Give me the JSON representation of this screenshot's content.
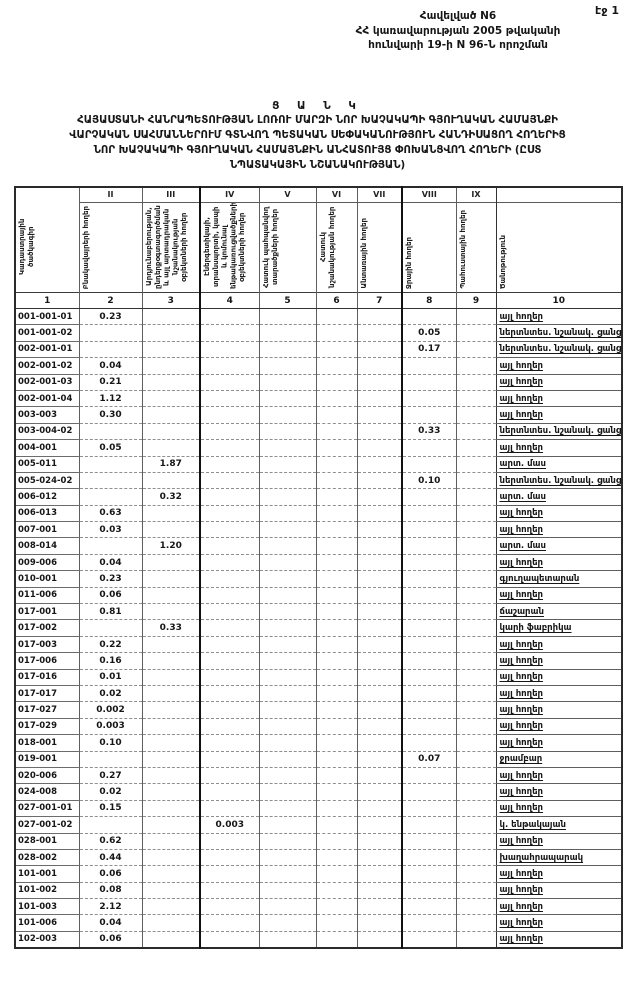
{
  "page": {
    "number": "էջ 1"
  },
  "appendix": {
    "lines": [
      "Հավելված N6",
      "ՀՀ կառավարության 2005 թվականի",
      "հունվարի 19-ի N 96-Ն որոշման"
    ]
  },
  "title": {
    "lines": [
      "Ց Ա Ն Կ",
      "ՀԱՅԱՍՏԱՆԻ ՀԱՆՐԱՊԵՏՈՒԹՅԱՆ ԼՈՌՈՒ ՄԱՐԶԻ ՆՈՐ ԽԱՉԱԿԱՊԻ ԳՅՈՒՂԱԿԱՆ ՀԱՄԱՅՆՔԻ",
      "ՎԱՐՉԱԿԱՆ ՍԱՀՄԱՆՆԵՐՈՒՄ ԳՏՆՎՈՂ ՊԵՏԱԿԱՆ ՍԵՓԱԿԱՆՈՒԹՅՈՒՆ ՀԱՆԴԻՍԱՑՈՂ ՀՈՂԵՐԻՑ",
      "ՆՈՐ ԽԱՉԱԿԱՊԻ ԳՅՈՒՂԱԿԱՆ ՀԱՄԱՅՆՔԻՆ ԱՆՀԱՏՈՒՅՑ ՓՈԽԱՆՑՎՈՂ ՀՈՂԵՐԻ (ԸՍՏ",
      "ՆՊԱՏԱԿԱՅԻՆ ՆՇԱՆԱԿՈՒԹՅԱՆ)"
    ]
  },
  "table": {
    "columns": [
      {
        "roman": "",
        "label": "Կադաստրային ծածկագիր",
        "number": "1"
      },
      {
        "roman": "II",
        "label": "Բնակավայրերի հողեր",
        "number": "2"
      },
      {
        "roman": "III",
        "label": "Արդյունաբերության, ընդերքօգտագործման և այլ արտադրական նշանակության օբյեկտների հողեր",
        "number": "3"
      },
      {
        "roman": "IV",
        "label": "Էներգետիկայի, տրանսպորտի, կապի և կոմունալ ենթակառուցվածքների օբյեկտների հողեր",
        "number": "4"
      },
      {
        "roman": "V",
        "label": "Հատուկ պահպանվող տարածքների հողեր",
        "number": "5"
      },
      {
        "roman": "VI",
        "label": "Հատուկ նշանակության հողեր",
        "number": "6"
      },
      {
        "roman": "VII",
        "label": "Անտառային հողեր",
        "number": "7"
      },
      {
        "roman": "VIII",
        "label": "Ջրային հողեր",
        "number": "8"
      },
      {
        "roman": "IX",
        "label": "Պահուստային հողեր",
        "number": "9"
      },
      {
        "roman": "",
        "label": "Ծանոթություն",
        "number": "10"
      }
    ],
    "rows": [
      {
        "code": "001-001-01",
        "values": [
          "0.23",
          "",
          "",
          "",
          "",
          "",
          "",
          ""
        ],
        "note": "այլ հողեր",
        "mark": ""
      },
      {
        "code": "001-001-02",
        "values": [
          "",
          "",
          "",
          "",
          "",
          "",
          "0.05",
          ""
        ],
        "note": "ներտնտես. նշանակ. ցանց",
        "mark": "ii"
      },
      {
        "code": "002-001-01",
        "values": [
          "",
          "",
          "",
          "",
          "",
          "",
          "0.17",
          ""
        ],
        "note": "ներտնտես. նշանակ. ցանց",
        "mark": "ii"
      },
      {
        "code": "002-001-02",
        "values": [
          "0.04",
          "",
          "",
          "",
          "",
          "",
          "",
          ""
        ],
        "note": "այլ հողեր",
        "mark": ""
      },
      {
        "code": "002-001-03",
        "values": [
          "0.21",
          "",
          "",
          "",
          "",
          "",
          "",
          ""
        ],
        "note": "այլ հողեր",
        "mark": ""
      },
      {
        "code": "002-001-04",
        "values": [
          "1.12",
          "",
          "",
          "",
          "",
          "",
          "",
          ""
        ],
        "note": "այլ հողեր",
        "mark": ""
      },
      {
        "code": "003-003",
        "values": [
          "0.30",
          "",
          "",
          "",
          "",
          "",
          "",
          ""
        ],
        "note": "այլ հողեր",
        "mark": ""
      },
      {
        "code": "003-004-02",
        "values": [
          "",
          "",
          "",
          "",
          "",
          "",
          "0.33",
          ""
        ],
        "note": "ներտնտես. նշանակ. ցանց",
        "mark": "ii"
      },
      {
        "code": "004-001",
        "values": [
          "0.05",
          "",
          "",
          "",
          "",
          "",
          "",
          ""
        ],
        "note": "այլ հողեր",
        "mark": ""
      },
      {
        "code": "005-011",
        "values": [
          "",
          "1.87",
          "",
          "",
          "",
          "",
          "",
          ""
        ],
        "note": "արտ. մաս",
        "mark": ""
      },
      {
        "code": "005-024-02",
        "values": [
          "",
          "",
          "",
          "",
          "",
          "",
          "0.10",
          ""
        ],
        "note": "ներտնտես. նշանակ. ցանց",
        "mark": "ii"
      },
      {
        "code": "006-012",
        "values": [
          "",
          "0.32",
          "",
          "",
          "",
          "",
          "",
          ""
        ],
        "note": "արտ. մաս",
        "mark": ""
      },
      {
        "code": "006-013",
        "values": [
          "0.63",
          "",
          "",
          "",
          "",
          "",
          "",
          ""
        ],
        "note": "այլ հողեր",
        "mark": ""
      },
      {
        "code": "007-001",
        "values": [
          "0.03",
          "",
          "",
          "",
          "",
          "",
          "",
          ""
        ],
        "note": "այլ հողեր",
        "mark": ""
      },
      {
        "code": "008-014",
        "values": [
          "",
          "1.20",
          "",
          "",
          "",
          "",
          "",
          ""
        ],
        "note": "արտ. մաս",
        "mark": ""
      },
      {
        "code": "009-006",
        "values": [
          "0.04",
          "",
          "",
          "",
          "",
          "",
          "",
          ""
        ],
        "note": "այլ հողեր",
        "mark": ""
      },
      {
        "code": "010-001",
        "values": [
          "0.23",
          "",
          "",
          "",
          "",
          "",
          "",
          ""
        ],
        "note": "գյուղապետարան",
        "mark": "ii"
      },
      {
        "code": "011-006",
        "values": [
          "0.06",
          "",
          "",
          "",
          "",
          "",
          "",
          ""
        ],
        "note": "այլ հողեր",
        "mark": ""
      },
      {
        "code": "017-001",
        "values": [
          "0.81",
          "",
          "",
          "",
          "",
          "",
          "",
          ""
        ],
        "note": "ճաշարան",
        "mark": ""
      },
      {
        "code": "017-002",
        "values": [
          "",
          "0.33",
          "",
          "",
          "",
          "",
          "",
          ""
        ],
        "note": "կարի ֆաբրիկա",
        "mark": ""
      },
      {
        "code": "017-003",
        "values": [
          "0.22",
          "",
          "",
          "",
          "",
          "",
          "",
          ""
        ],
        "note": "այլ հողեր",
        "mark": ""
      },
      {
        "code": "017-006",
        "values": [
          "0.16",
          "",
          "",
          "",
          "",
          "",
          "",
          ""
        ],
        "note": "այլ հողեր",
        "mark": ""
      },
      {
        "code": "017-016",
        "values": [
          "0.01",
          "",
          "",
          "",
          "",
          "",
          "",
          ""
        ],
        "note": "այլ հողեր",
        "mark": ""
      },
      {
        "code": "017-017",
        "values": [
          "0.02",
          "",
          "",
          "",
          "",
          "",
          "",
          ""
        ],
        "note": "այլ հողեր",
        "mark": ""
      },
      {
        "code": "017-027",
        "values": [
          "0.002",
          "",
          "",
          "",
          "",
          "",
          "",
          ""
        ],
        "note": "այլ հողեր",
        "mark": ""
      },
      {
        "code": "017-029",
        "values": [
          "0.003",
          "",
          "",
          "",
          "",
          "",
          "",
          ""
        ],
        "note": "այլ հողեր",
        "mark": ""
      },
      {
        "code": "018-001",
        "values": [
          "0.10",
          "",
          "",
          "",
          "",
          "",
          "",
          ""
        ],
        "note": "այլ հողեր",
        "mark": ""
      },
      {
        "code": "019-001",
        "values": [
          "",
          "",
          "",
          "",
          "",
          "",
          "0.07",
          ""
        ],
        "note": "ջրամբար",
        "mark": "ii"
      },
      {
        "code": "020-006",
        "values": [
          "0.27",
          "",
          "",
          "",
          "",
          "",
          "",
          ""
        ],
        "note": "այլ հողեր",
        "mark": ""
      },
      {
        "code": "024-008",
        "values": [
          "0.02",
          "",
          "",
          "",
          "",
          "",
          "",
          ""
        ],
        "note": "այլ հողեր",
        "mark": ""
      },
      {
        "code": "027-001-01",
        "values": [
          "0.15",
          "",
          "",
          "",
          "",
          "",
          "",
          ""
        ],
        "note": "այլ հողեր",
        "mark": ""
      },
      {
        "code": "027-001-02",
        "values": [
          "",
          "",
          "0.003",
          "",
          "",
          "",
          "",
          ""
        ],
        "note": "կ. ենթակայան",
        "mark": ""
      },
      {
        "code": "028-001",
        "values": [
          "0.62",
          "",
          "",
          "",
          "",
          "",
          "",
          ""
        ],
        "note": "այլ հողեր",
        "mark": ""
      },
      {
        "code": "028-002",
        "values": [
          "0.44",
          "",
          "",
          "",
          "",
          "",
          "",
          ""
        ],
        "note": "խաղահրապարակ",
        "mark": "ii"
      },
      {
        "code": "101-001",
        "values": [
          "0.06",
          "",
          "",
          "",
          "",
          "",
          "",
          ""
        ],
        "note": "այլ հողեր",
        "mark": ""
      },
      {
        "code": "101-002",
        "values": [
          "0.08",
          "",
          "",
          "",
          "",
          "",
          "",
          ""
        ],
        "note": "այլ հողեր",
        "mark": ""
      },
      {
        "code": "101-003",
        "values": [
          "2.12",
          "",
          "",
          "",
          "",
          "",
          "",
          ""
        ],
        "note": "այլ հողեր",
        "mark": ""
      },
      {
        "code": "101-006",
        "values": [
          "0.04",
          "",
          "",
          "",
          "",
          "",
          "",
          ""
        ],
        "note": "այլ հողեր",
        "mark": ""
      },
      {
        "code": "102-003",
        "values": [
          "0.06",
          "",
          "",
          "",
          "",
          "",
          "",
          ""
        ],
        "note": "այլ հողեր",
        "mark": ""
      }
    ]
  }
}
